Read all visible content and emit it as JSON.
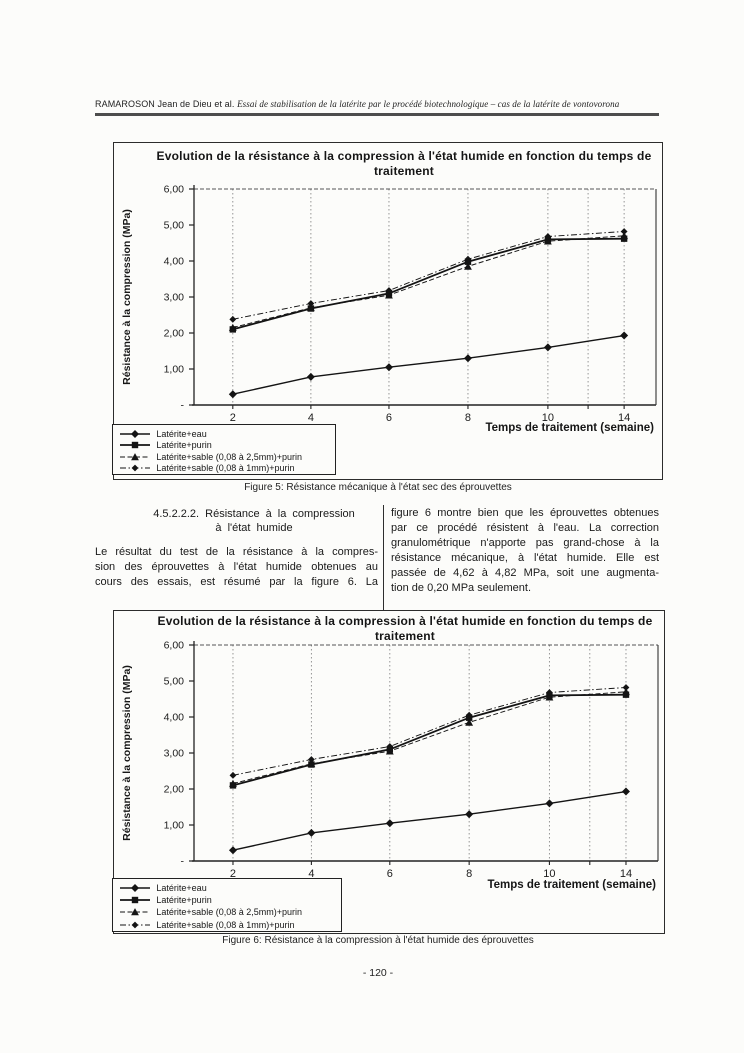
{
  "header": {
    "authors": "RAMAROSON Jean de Dieu et al. ",
    "title_italic": "Essai de stabilisation de la latérite par le procédé biotechnologique – cas de la latérite de vontovorona"
  },
  "section": {
    "heading_line1": "4.5.2.2.2. Résistance à la compression",
    "heading_line2": "à l'état humide",
    "left_paragraph_lines": [
      "Le résultat du test de la résistance à la compres-",
      "sion des éprouvettes à l'état humide obtenues au",
      "cours des essais, est résumé par la figure 6.  La"
    ],
    "left_paragraph_justify_last": true,
    "right_paragraph_lines": [
      "figure 6 montre bien que les éprouvettes obtenues",
      "par ce procédé résistent à l'eau. La correction",
      "granulométrique n'apporte pas grand-chose à la",
      "résistance mécanique, à l'état humide. Elle est",
      "passée de 4,62 à 4,82 MPa, soit une augmenta-",
      "tion de 0,20 MPa seulement."
    ],
    "right_paragraph_justify_last": false
  },
  "figures": [
    {
      "caption": "Figure 5: Résistance mécanique à l'état sec des éprouvettes"
    },
    {
      "caption": "Figure 6: Résistance à la compression à l'état humide des éprouvettes"
    }
  ],
  "page": {
    "number_label": "- 120 -"
  },
  "chart_data": [
    {
      "type": "line",
      "title": "Evolution de la résistance à la compression à l'état humide en fonction du temps de traitement",
      "xlabel": "Temps de traitement (semaine)",
      "ylabel": "Résistance à la compression (MPa)",
      "ylim": [
        0,
        6
      ],
      "y_ticks": [
        "6,00",
        "5,00",
        "4,00",
        "3,00",
        "2,00",
        "1,00",
        "-"
      ],
      "x_ticks": [
        "2",
        "4",
        "6",
        "8",
        "10",
        "14"
      ],
      "categories": [
        2,
        4,
        6,
        8,
        10,
        14
      ],
      "x_gridlines": [
        2,
        4,
        6,
        8,
        10,
        12,
        14
      ],
      "grid": "vertical-dashed",
      "legend_position": "bottom-left",
      "line_color": "#141414",
      "series": [
        {
          "name": "Latérite+eau",
          "marker": "diamond",
          "dash": "solid",
          "values": [
            0.3,
            0.78,
            1.05,
            1.3,
            1.6,
            1.93
          ]
        },
        {
          "name": "Latérite+purin",
          "marker": "square",
          "dash": "solid",
          "values": [
            2.1,
            2.68,
            3.1,
            3.98,
            4.6,
            4.62
          ]
        },
        {
          "name": "Latérite+sable (0,08 à 2,5mm)+purin",
          "marker": "triangle",
          "dash": "dashed",
          "values": [
            2.15,
            2.7,
            3.05,
            3.85,
            4.55,
            4.7
          ]
        },
        {
          "name": "Latérite+sable (0,08 à 1mm)+purin",
          "marker": "diamond-small",
          "dash": "dashdot",
          "values": [
            2.38,
            2.82,
            3.18,
            4.05,
            4.68,
            4.82
          ]
        }
      ]
    },
    {
      "type": "line",
      "title": "Evolution de la résistance à la compression à l'état humide en fonction du temps de traitement",
      "xlabel": "Temps de traitement (semaine)",
      "ylabel": "Résistance à la compression (MPa)",
      "ylim": [
        0,
        6
      ],
      "y_ticks": [
        "6,00",
        "5,00",
        "4,00",
        "3,00",
        "2,00",
        "1,00",
        "-"
      ],
      "x_ticks": [
        "2",
        "4",
        "6",
        "8",
        "10",
        "14"
      ],
      "categories": [
        2,
        4,
        6,
        8,
        10,
        14
      ],
      "x_gridlines": [
        2,
        4,
        6,
        8,
        10,
        12,
        14
      ],
      "grid": "vertical-dashed",
      "legend_position": "bottom-left",
      "line_color": "#141414",
      "series": [
        {
          "name": "Latérite+eau",
          "marker": "diamond",
          "dash": "solid",
          "values": [
            0.3,
            0.78,
            1.05,
            1.3,
            1.6,
            1.93
          ]
        },
        {
          "name": "Latérite+purin",
          "marker": "square",
          "dash": "solid",
          "values": [
            2.1,
            2.68,
            3.1,
            3.98,
            4.6,
            4.62
          ]
        },
        {
          "name": "Latérite+sable (0,08 à 2,5mm)+purin",
          "marker": "triangle",
          "dash": "dashed",
          "values": [
            2.15,
            2.7,
            3.05,
            3.85,
            4.55,
            4.7
          ]
        },
        {
          "name": "Latérite+sable (0,08 à 1mm)+purin",
          "marker": "diamond-small",
          "dash": "dashdot",
          "values": [
            2.38,
            2.82,
            3.18,
            4.05,
            4.68,
            4.82
          ]
        }
      ]
    }
  ]
}
